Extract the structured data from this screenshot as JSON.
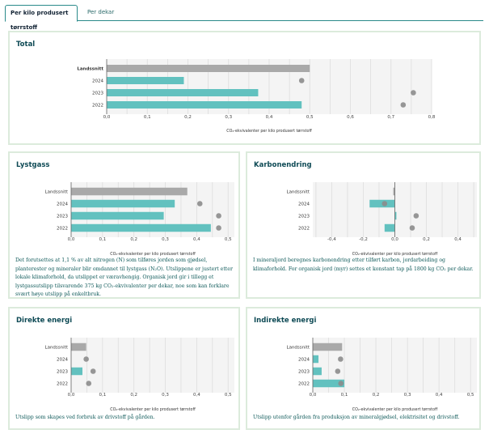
{
  "tabs": [
    {
      "label": "Per kilo produsert tørrstoff",
      "active": true
    },
    {
      "label": "Per dekar",
      "active": false
    }
  ],
  "colors": {
    "bar": "#62c1bf",
    "reference_bar": "#a9a9a9",
    "dot": "#8c8c8c",
    "plot_bg": "#f4f4f4",
    "grid": "#dddddd",
    "title": "#0e4a55",
    "text": "#0f5a5a"
  },
  "chart_data": [
    {
      "id": "total",
      "type": "bar",
      "orientation": "horizontal",
      "title": "Total",
      "xlabel": "CO₂-ekvivalenter per kilo produsert tørrstoff",
      "categories": [
        "Landssnitt",
        "2024",
        "2023",
        "2022"
      ],
      "values": [
        0.5,
        0.19,
        0.373,
        0.48
      ],
      "markers": [
        null,
        0.48,
        0.755,
        0.73
      ],
      "xlim": [
        0,
        0.8
      ],
      "ticks": [
        "0,0",
        "0,1",
        "0,2",
        "0,3",
        "0,4",
        "0,5",
        "0,6",
        "0,7",
        "0,8"
      ],
      "tick_values": [
        0,
        0.1,
        0.2,
        0.3,
        0.4,
        0.5,
        0.6,
        0.7,
        0.8
      ],
      "grid": true,
      "description": ""
    },
    {
      "id": "lystgass",
      "type": "bar",
      "orientation": "horizontal",
      "title": "Lystgass",
      "xlabel": "CO₂-ekvivalenter per kilo produsert tørrstoff",
      "categories": [
        "Landssnitt",
        "2024",
        "2023",
        "2022"
      ],
      "values": [
        0.37,
        0.33,
        0.295,
        0.445
      ],
      "markers": [
        null,
        0.41,
        0.47,
        0.47
      ],
      "xlim": [
        0,
        0.52
      ],
      "ticks": [
        "0,0",
        "0,1",
        "0,2",
        "0,3",
        "0,4",
        "0,5"
      ],
      "tick_values": [
        0,
        0.1,
        0.2,
        0.3,
        0.4,
        0.5
      ],
      "grid": true,
      "description": "Det forutsettes at 1,1 % av alt nitrogen (N) som tilføres jorden som gjødsel, planterester og mineraler blir omdannet til lystgass (N₂O). Utslippene er justert etter lokale klimaforhold, da utslippet er væravhengig. Organisk jord gir i tillegg et lystgassutslipp tilsvarende 375 kg CO₂-ekvivalenter per dekar, noe som kan forklare svært høye utslipp på enkeltbruk."
    },
    {
      "id": "karbon",
      "type": "bar",
      "orientation": "horizontal",
      "title": "Karbonendring",
      "xlabel": "CO₂-ekvivalenter per kilo produsert tørrstoff",
      "categories": [
        "Landssnitt",
        "2024",
        "2023",
        "2022"
      ],
      "values": [
        -0.01,
        -0.16,
        0.01,
        -0.065
      ],
      "markers": [
        null,
        -0.065,
        0.135,
        0.11
      ],
      "xlim": [
        -0.52,
        0.52
      ],
      "ticks": [
        "-0,4",
        "-0,2",
        "0,0",
        "0,2",
        "0,4"
      ],
      "tick_values": [
        -0.4,
        -0.2,
        0,
        0.2,
        0.4
      ],
      "grid": true,
      "description": "I mineraljord beregnes karbonendring etter tilført karbon, jordarbeiding og klimaforhold. For organisk jord (myr) settes et konstant tap på 1800 kg CO₂ per dekar."
    },
    {
      "id": "direkte",
      "type": "bar",
      "orientation": "horizontal",
      "title": "Direkte energi",
      "xlabel": "CO₂-ekvivalenter per kilo produsert tørrstoff",
      "categories": [
        "Landssnitt",
        "2024",
        "2023",
        "2022"
      ],
      "values": [
        0.048,
        0,
        0.036,
        0
      ],
      "markers": [
        null,
        0.048,
        0.07,
        0.056
      ],
      "xlim": [
        0,
        0.52
      ],
      "ticks": [
        "0,0",
        "0,1",
        "0,2",
        "0,3",
        "0,4",
        "0,5"
      ],
      "tick_values": [
        0,
        0.1,
        0.2,
        0.3,
        0.4,
        0.5
      ],
      "grid": true,
      "description": "Utslipp som skapes ved forbruk av drivstoff på gården."
    },
    {
      "id": "indirekte",
      "type": "bar",
      "orientation": "horizontal",
      "title": "Indirekte energi",
      "xlabel": "CO₂-ekvivalenter per kilo produsert tørrstoff",
      "categories": [
        "Landssnitt",
        "2024",
        "2023",
        "2022"
      ],
      "values": [
        0.093,
        0.018,
        0.028,
        0.1
      ],
      "markers": [
        null,
        0.088,
        0.079,
        0.089
      ],
      "xlim": [
        0,
        0.52
      ],
      "ticks": [
        "0,0",
        "0,1",
        "0,2",
        "0,3",
        "0,4",
        "0,5"
      ],
      "tick_values": [
        0,
        0.1,
        0.2,
        0.3,
        0.4,
        0.5
      ],
      "grid": true,
      "description": "Utslipp utenfor gården fra produksjon av mineralgjødsel, elektrisitet og drivstoff."
    }
  ]
}
